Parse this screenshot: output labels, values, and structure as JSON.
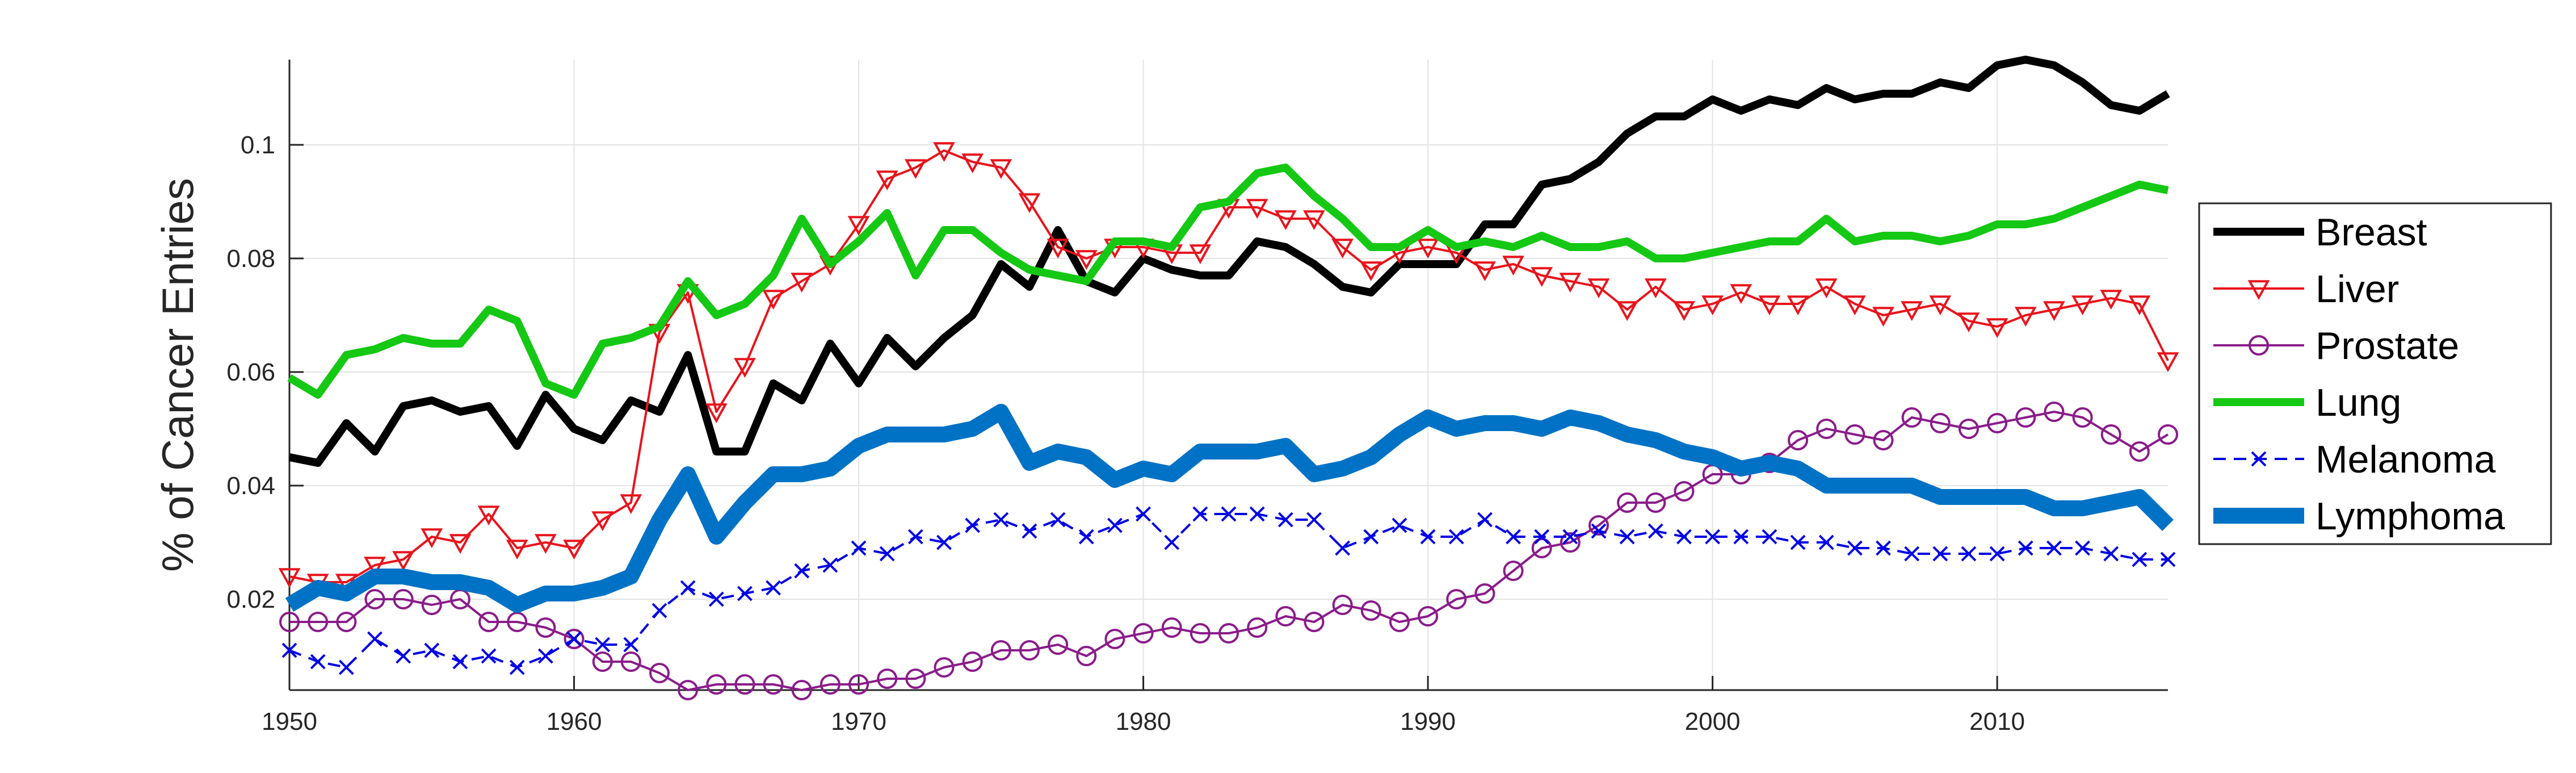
{
  "chart_data": {
    "type": "line",
    "title": "",
    "xlabel": "",
    "ylabel": "% of Cancer Entries",
    "xlim": [
      1950,
      2016
    ],
    "ylim": [
      0.004,
      0.115
    ],
    "x_ticks": [
      1950,
      1960,
      1970,
      1980,
      1990,
      2000,
      2010
    ],
    "y_ticks": [
      0.02,
      0.04,
      0.06,
      0.08,
      0.1
    ],
    "x_tick_labels": [
      "1950",
      "1960",
      "1970",
      "1980",
      "1990",
      "2000",
      "2010"
    ],
    "y_tick_labels": [
      "0.02",
      "0.04",
      "0.06",
      "0.08",
      "0.1"
    ],
    "grid": true,
    "legend_position": "right",
    "x_start": 1950,
    "series": [
      {
        "name": "Breast",
        "color": "#000000",
        "style": "thick-solid",
        "marker": "none",
        "values": [
          0.045,
          0.044,
          0.051,
          0.046,
          0.054,
          0.055,
          0.053,
          0.054,
          0.047,
          0.056,
          0.05,
          0.048,
          0.055,
          0.053,
          0.063,
          0.046,
          0.046,
          0.058,
          0.055,
          0.065,
          0.058,
          0.066,
          0.061,
          0.066,
          0.07,
          0.079,
          0.075,
          0.085,
          0.076,
          0.074,
          0.08,
          0.078,
          0.077,
          0.077,
          0.083,
          0.082,
          0.079,
          0.075,
          0.074,
          0.079,
          0.079,
          0.079,
          0.086,
          0.086,
          0.093,
          0.094,
          0.097,
          0.102,
          0.105,
          0.105,
          0.108,
          0.106,
          0.108,
          0.107,
          0.11,
          0.108,
          0.109,
          0.109,
          0.111,
          0.11,
          0.114,
          0.115,
          0.114,
          0.111,
          0.107,
          0.106,
          0.109
        ]
      },
      {
        "name": "Liver",
        "color": "#e8141c",
        "style": "thin-solid",
        "marker": "triangle-down",
        "values": [
          0.024,
          0.023,
          0.023,
          0.026,
          0.027,
          0.031,
          0.03,
          0.035,
          0.029,
          0.03,
          0.029,
          0.034,
          0.037,
          0.067,
          0.074,
          0.053,
          0.061,
          0.073,
          0.076,
          0.079,
          0.086,
          0.094,
          0.096,
          0.099,
          0.097,
          0.096,
          0.09,
          0.082,
          0.08,
          0.082,
          0.082,
          0.081,
          0.081,
          0.089,
          0.089,
          0.087,
          0.087,
          0.082,
          0.078,
          0.081,
          0.082,
          0.081,
          0.078,
          0.079,
          0.077,
          0.076,
          0.075,
          0.071,
          0.075,
          0.071,
          0.072,
          0.074,
          0.072,
          0.072,
          0.075,
          0.072,
          0.07,
          0.071,
          0.072,
          0.069,
          0.068,
          0.07,
          0.071,
          0.072,
          0.073,
          0.072,
          0.062
        ]
      },
      {
        "name": "Prostate",
        "color": "#8a1c8a",
        "style": "thin-solid",
        "marker": "circle",
        "values": [
          0.016,
          0.016,
          0.016,
          0.02,
          0.02,
          0.019,
          0.02,
          0.016,
          0.016,
          0.015,
          0.013,
          0.009,
          0.009,
          0.007,
          0.004,
          0.005,
          0.005,
          0.005,
          0.004,
          0.005,
          0.005,
          0.006,
          0.006,
          0.008,
          0.009,
          0.011,
          0.011,
          0.012,
          0.01,
          0.013,
          0.014,
          0.015,
          0.014,
          0.014,
          0.015,
          0.017,
          0.016,
          0.019,
          0.018,
          0.016,
          0.017,
          0.02,
          0.021,
          0.025,
          0.029,
          0.03,
          0.033,
          0.037,
          0.037,
          0.039,
          0.042,
          0.042,
          0.044,
          0.048,
          0.05,
          0.049,
          0.048,
          0.052,
          0.051,
          0.05,
          0.051,
          0.052,
          0.053,
          0.052,
          0.049,
          0.046,
          0.049
        ]
      },
      {
        "name": "Lung",
        "color": "#14c814",
        "style": "thick-solid",
        "marker": "none",
        "values": [
          0.059,
          0.056,
          0.063,
          0.064,
          0.066,
          0.065,
          0.065,
          0.071,
          0.069,
          0.058,
          0.056,
          0.065,
          0.066,
          0.068,
          0.076,
          0.07,
          0.072,
          0.077,
          0.087,
          0.079,
          0.083,
          0.088,
          0.077,
          0.085,
          0.085,
          0.081,
          0.078,
          0.077,
          0.076,
          0.083,
          0.083,
          0.082,
          0.089,
          0.09,
          0.095,
          0.096,
          0.091,
          0.087,
          0.082,
          0.082,
          0.085,
          0.082,
          0.083,
          0.082,
          0.084,
          0.082,
          0.082,
          0.083,
          0.08,
          0.08,
          0.081,
          0.082,
          0.083,
          0.083,
          0.087,
          0.083,
          0.084,
          0.084,
          0.083,
          0.084,
          0.086,
          0.086,
          0.087,
          0.089,
          0.091,
          0.093,
          0.092
        ]
      },
      {
        "name": "Melanoma",
        "color": "#0000e6",
        "style": "dashed",
        "marker": "x",
        "values": [
          0.011,
          0.009,
          0.008,
          0.013,
          0.01,
          0.011,
          0.009,
          0.01,
          0.008,
          0.01,
          0.013,
          0.012,
          0.012,
          0.018,
          0.022,
          0.02,
          0.021,
          0.022,
          0.025,
          0.026,
          0.029,
          0.028,
          0.031,
          0.03,
          0.033,
          0.034,
          0.032,
          0.034,
          0.031,
          0.033,
          0.035,
          0.03,
          0.035,
          0.035,
          0.035,
          0.034,
          0.034,
          0.029,
          0.031,
          0.033,
          0.031,
          0.031,
          0.034,
          0.031,
          0.031,
          0.031,
          0.032,
          0.031,
          0.032,
          0.031,
          0.031,
          0.031,
          0.031,
          0.03,
          0.03,
          0.029,
          0.029,
          0.028,
          0.028,
          0.028,
          0.028,
          0.029,
          0.029,
          0.029,
          0.028,
          0.027,
          0.027
        ]
      },
      {
        "name": "Lymphoma",
        "color": "#0072c6",
        "style": "very-thick-solid",
        "marker": "none",
        "values": [
          0.019,
          0.022,
          0.021,
          0.024,
          0.024,
          0.023,
          0.023,
          0.022,
          0.019,
          0.021,
          0.021,
          0.022,
          0.024,
          0.034,
          0.042,
          0.031,
          0.037,
          0.042,
          0.042,
          0.043,
          0.047,
          0.049,
          0.049,
          0.049,
          0.05,
          0.053,
          0.044,
          0.046,
          0.045,
          0.041,
          0.043,
          0.042,
          0.046,
          0.046,
          0.046,
          0.047,
          0.042,
          0.043,
          0.045,
          0.049,
          0.052,
          0.05,
          0.051,
          0.051,
          0.05,
          0.052,
          0.051,
          0.049,
          0.048,
          0.046,
          0.045,
          0.043,
          0.044,
          0.043,
          0.04,
          0.04,
          0.04,
          0.04,
          0.038,
          0.038,
          0.038,
          0.038,
          0.036,
          0.036,
          0.037,
          0.038,
          0.033
        ]
      }
    ]
  }
}
